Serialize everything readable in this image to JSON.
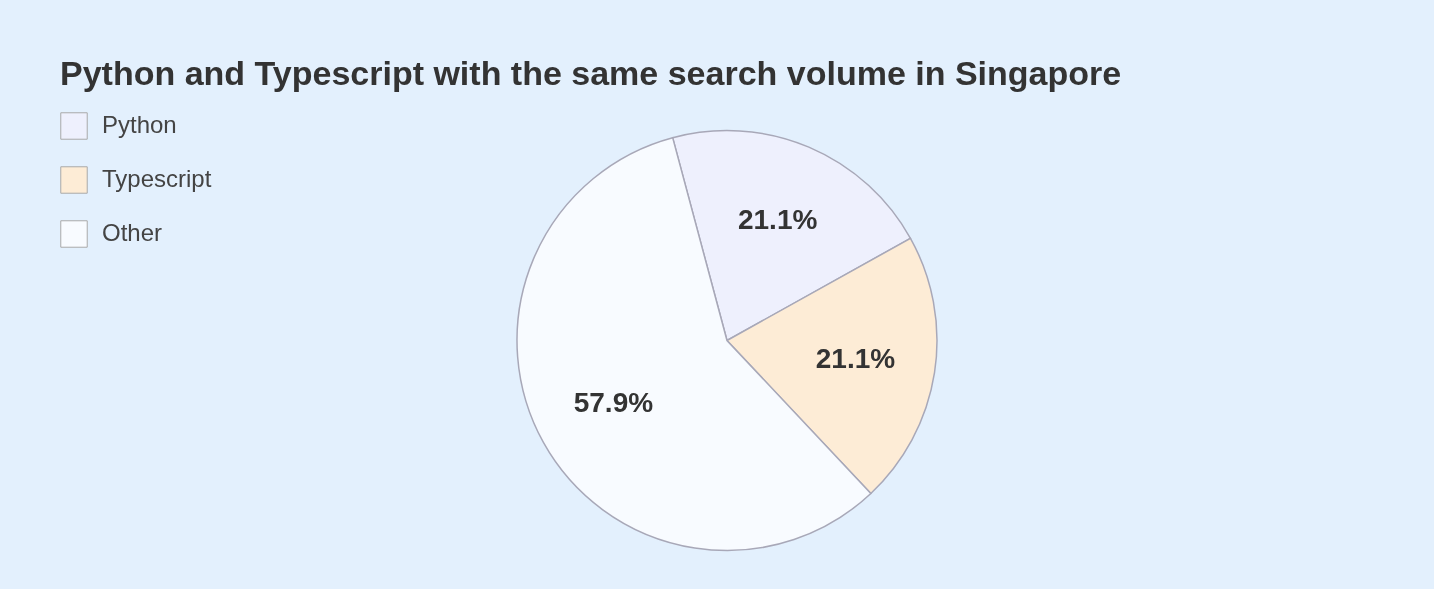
{
  "chart_data": {
    "type": "pie",
    "title": "Python and Typescript with the same search volume in Singapore",
    "categories": [
      "Python",
      "Typescript",
      "Other"
    ],
    "values": [
      21.1,
      21.1,
      57.9
    ],
    "colors": [
      "#eef0fd",
      "#fdecd6",
      "#f8fbff"
    ],
    "value_labels": [
      "21.1%",
      "21.1%",
      "57.9%"
    ],
    "legend": "top left"
  }
}
